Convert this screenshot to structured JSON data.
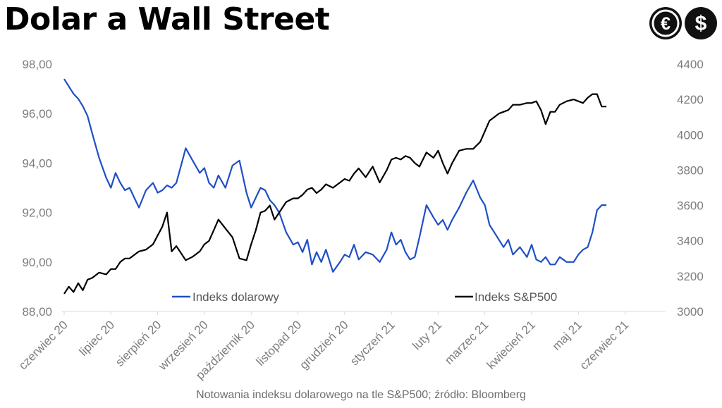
{
  "header": {
    "title": "Dolar a Wall Street"
  },
  "logo": {
    "euro_symbol": "€",
    "dollar_symbol": "$",
    "color": "#111111"
  },
  "caption": "Notowania indeksu dolarowego na tle S&P500; źródło: Bloomberg",
  "chart_data": {
    "type": "line",
    "title": "Dolar a Wall Street",
    "x_tick_labels": [
      "czerwiec 20",
      "lipiec 20",
      "sierpień 20",
      "wrzesień 20",
      "październik 20",
      "listopad 20",
      "grudzień 20",
      "styczeń 21",
      "luty 21",
      "marzec 21",
      "kwiecień 21",
      "maj 21",
      "czerwiec 21"
    ],
    "y_left": {
      "lim": [
        88,
        98
      ],
      "ticks": [
        88,
        90,
        92,
        94,
        96,
        98
      ],
      "tick_labels": [
        "88,00",
        "90,00",
        "92,00",
        "94,00",
        "96,00",
        "98,00"
      ]
    },
    "y_right": {
      "lim": [
        3000,
        4400
      ],
      "ticks": [
        3000,
        3200,
        3400,
        3600,
        3800,
        4000,
        4200,
        4400
      ],
      "tick_labels": [
        "3000",
        "3200",
        "3400",
        "3600",
        "3800",
        "4000",
        "4200",
        "4400"
      ]
    },
    "x_unit": "months since start of June 2020",
    "series": [
      {
        "name": "Indeks dolarowy",
        "axis": "left",
        "color": "#1f4fc7",
        "x": [
          0,
          0.1,
          0.2,
          0.3,
          0.4,
          0.5,
          0.6,
          0.75,
          0.9,
          1.0,
          1.1,
          1.2,
          1.3,
          1.4,
          1.5,
          1.6,
          1.75,
          1.9,
          2.0,
          2.1,
          2.2,
          2.3,
          2.4,
          2.5,
          2.6,
          2.75,
          2.9,
          3.0,
          3.1,
          3.2,
          3.3,
          3.45,
          3.6,
          3.75,
          3.9,
          4.0,
          4.1,
          4.2,
          4.3,
          4.4,
          4.5,
          4.6,
          4.75,
          4.9,
          5.0,
          5.1,
          5.2,
          5.3,
          5.4,
          5.5,
          5.6,
          5.75,
          5.9,
          6.0,
          6.1,
          6.2,
          6.3,
          6.45,
          6.6,
          6.75,
          6.9,
          7.0,
          7.1,
          7.2,
          7.3,
          7.4,
          7.5,
          7.6,
          7.75,
          7.9,
          8.0,
          8.1,
          8.2,
          8.3,
          8.45,
          8.6,
          8.75,
          8.9,
          9.0,
          9.1,
          9.2,
          9.3,
          9.4,
          9.5,
          9.6,
          9.75,
          9.9,
          10.0,
          10.1,
          10.2,
          10.3,
          10.4,
          10.5,
          10.6,
          10.75,
          10.9,
          11.0,
          11.1,
          11.2,
          11.3,
          11.4,
          11.5,
          11.6
        ],
        "values": [
          97.4,
          97.1,
          96.8,
          96.6,
          96.3,
          95.9,
          95.2,
          94.2,
          93.4,
          93.0,
          93.6,
          93.2,
          92.9,
          93.0,
          92.6,
          92.2,
          92.9,
          93.2,
          92.8,
          92.9,
          93.1,
          93.0,
          93.2,
          93.9,
          94.6,
          94.1,
          93.6,
          93.8,
          93.2,
          93.0,
          93.5,
          93.0,
          93.9,
          94.1,
          92.8,
          92.2,
          92.6,
          93.0,
          92.9,
          92.5,
          92.3,
          92.0,
          91.2,
          90.7,
          90.8,
          90.4,
          90.9,
          89.9,
          90.4,
          90.0,
          90.5,
          89.6,
          90.0,
          90.3,
          90.2,
          90.7,
          90.1,
          90.4,
          90.3,
          90.0,
          90.5,
          91.2,
          90.7,
          90.9,
          90.4,
          90.1,
          90.2,
          91.0,
          92.3,
          91.8,
          91.5,
          91.7,
          91.3,
          91.7,
          92.2,
          92.8,
          93.3,
          92.6,
          92.3,
          91.5,
          91.2,
          90.9,
          90.6,
          90.9,
          90.3,
          90.6,
          90.2,
          90.7,
          90.1,
          90.0,
          90.2,
          89.9,
          89.9,
          90.2,
          90.0,
          90.0,
          90.3,
          90.5,
          90.6,
          91.2,
          92.1,
          92.3,
          92.3
        ]
      },
      {
        "name": "Indeks S&P500",
        "axis": "right",
        "color": "#000000",
        "x": [
          0,
          0.1,
          0.2,
          0.3,
          0.4,
          0.5,
          0.6,
          0.75,
          0.9,
          1.0,
          1.1,
          1.2,
          1.3,
          1.4,
          1.5,
          1.6,
          1.75,
          1.9,
          2.0,
          2.1,
          2.2,
          2.3,
          2.4,
          2.5,
          2.6,
          2.75,
          2.9,
          3.0,
          3.1,
          3.2,
          3.3,
          3.45,
          3.6,
          3.75,
          3.9,
          4.0,
          4.1,
          4.2,
          4.3,
          4.4,
          4.5,
          4.6,
          4.75,
          4.9,
          5.0,
          5.1,
          5.2,
          5.3,
          5.4,
          5.5,
          5.6,
          5.75,
          5.9,
          6.0,
          6.1,
          6.2,
          6.3,
          6.45,
          6.6,
          6.75,
          6.9,
          7.0,
          7.1,
          7.2,
          7.3,
          7.4,
          7.5,
          7.6,
          7.75,
          7.9,
          8.0,
          8.1,
          8.2,
          8.3,
          8.45,
          8.6,
          8.75,
          8.9,
          9.0,
          9.1,
          9.2,
          9.3,
          9.4,
          9.5,
          9.6,
          9.75,
          9.9,
          10.0,
          10.1,
          10.2,
          10.3,
          10.4,
          10.5,
          10.6,
          10.75,
          10.9,
          11.0,
          11.1,
          11.2,
          11.3,
          11.4,
          11.5,
          11.6
        ],
        "values": [
          3100,
          3140,
          3110,
          3160,
          3120,
          3180,
          3190,
          3220,
          3210,
          3240,
          3240,
          3280,
          3300,
          3300,
          3320,
          3340,
          3350,
          3380,
          3430,
          3480,
          3560,
          3340,
          3370,
          3330,
          3290,
          3310,
          3340,
          3380,
          3400,
          3460,
          3520,
          3470,
          3420,
          3300,
          3290,
          3380,
          3460,
          3560,
          3570,
          3600,
          3520,
          3560,
          3620,
          3640,
          3640,
          3660,
          3690,
          3700,
          3670,
          3690,
          3720,
          3700,
          3730,
          3750,
          3740,
          3780,
          3810,
          3760,
          3820,
          3730,
          3800,
          3860,
          3870,
          3860,
          3880,
          3870,
          3840,
          3820,
          3900,
          3870,
          3910,
          3840,
          3780,
          3840,
          3910,
          3920,
          3920,
          3960,
          4020,
          4080,
          4100,
          4120,
          4130,
          4140,
          4170,
          4170,
          4180,
          4180,
          4190,
          4140,
          4060,
          4130,
          4130,
          4170,
          4190,
          4200,
          4190,
          4180,
          4210,
          4230,
          4230,
          4160,
          4160
        ]
      }
    ],
    "legend": {
      "position": "bottom-inside"
    }
  }
}
